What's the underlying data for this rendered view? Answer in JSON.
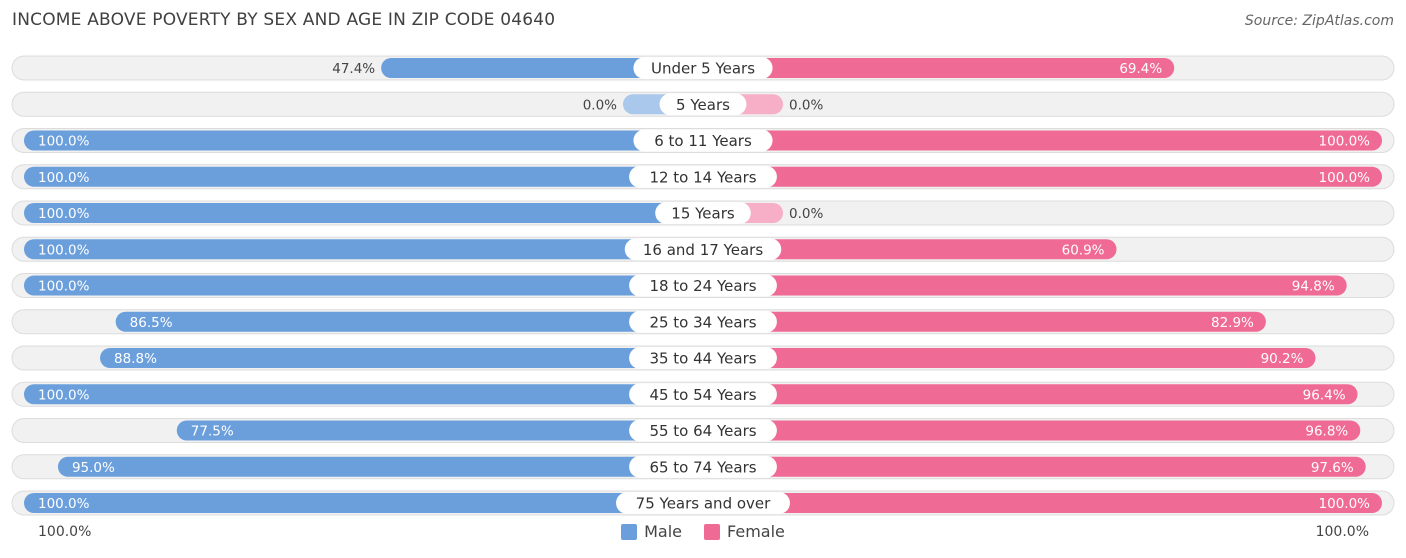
{
  "header": {
    "title": "INCOME ABOVE POVERTY BY SEX AND AGE IN ZIP CODE 04640",
    "source": "Source: ZipAtlas.com"
  },
  "colors": {
    "male": "#6a9fdc",
    "male_light": "#a9c8ec",
    "female": "#f06a96",
    "female_light": "#f7aec7",
    "track": "#f1f1f1",
    "track_border": "#dcdcdc"
  },
  "axis": {
    "left_label": "100.0%",
    "right_label": "100.0%"
  },
  "legend": {
    "male_label": "Male",
    "female_label": "Female"
  },
  "chart_data": {
    "type": "bar",
    "orientation": "horizontal-diverging",
    "title": "INCOME ABOVE POVERTY BY SEX AND AGE IN ZIP CODE 04640",
    "xlim": [
      0,
      100
    ],
    "categories": [
      "Under 5 Years",
      "5 Years",
      "6 to 11 Years",
      "12 to 14 Years",
      "15 Years",
      "16 and 17 Years",
      "18 to 24 Years",
      "25 to 34 Years",
      "35 to 44 Years",
      "45 to 54 Years",
      "55 to 64 Years",
      "65 to 74 Years",
      "75 Years and over"
    ],
    "series": [
      {
        "name": "Male",
        "values": [
          47.4,
          0.0,
          100.0,
          100.0,
          100.0,
          100.0,
          100.0,
          86.5,
          88.8,
          100.0,
          77.5,
          95.0,
          100.0
        ],
        "labels": [
          "47.4%",
          "0.0%",
          "100.0%",
          "100.0%",
          "100.0%",
          "100.0%",
          "100.0%",
          "86.5%",
          "88.8%",
          "100.0%",
          "77.5%",
          "95.0%",
          "100.0%"
        ]
      },
      {
        "name": "Female",
        "values": [
          69.4,
          0.0,
          100.0,
          100.0,
          0.0,
          60.9,
          94.8,
          82.9,
          90.2,
          96.4,
          96.8,
          97.6,
          100.0
        ],
        "labels": [
          "69.4%",
          "0.0%",
          "100.0%",
          "100.0%",
          "0.0%",
          "60.9%",
          "94.8%",
          "82.9%",
          "90.2%",
          "96.4%",
          "96.8%",
          "97.6%",
          "100.0%"
        ]
      }
    ]
  }
}
